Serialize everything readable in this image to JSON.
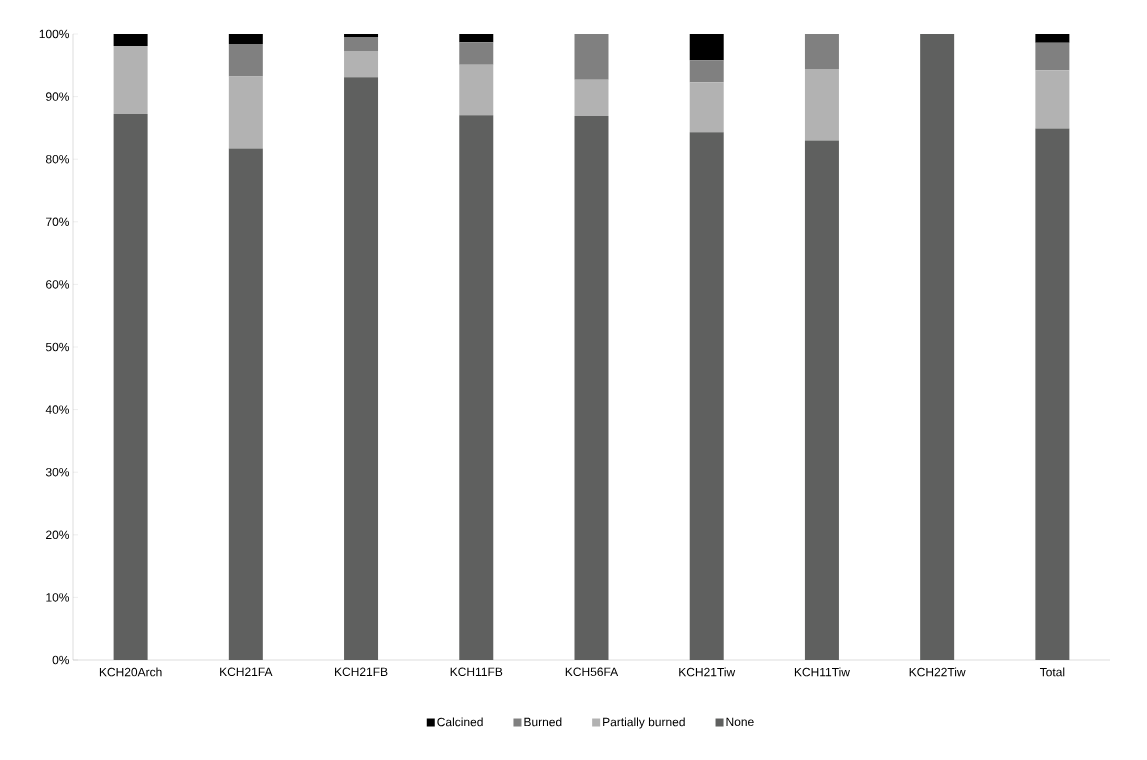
{
  "chart_data": {
    "type": "bar",
    "stacked": true,
    "categories": [
      "KCH20Arch",
      "KCH21FA",
      "KCH21FB",
      "KCH11FB",
      "KCH56FA",
      "KCH21Tiw",
      "KCH11Tiw",
      "KCH22Tiw",
      "Total"
    ],
    "series": [
      {
        "name": "None",
        "color": "#5f605f",
        "values": [
          87.2,
          81.7,
          93.1,
          87.0,
          86.9,
          84.3,
          83.0,
          100,
          84.9
        ]
      },
      {
        "name": "Partially burned",
        "color": "#b2b2b2",
        "values": [
          10.9,
          11.5,
          4.2,
          8.1,
          5.8,
          8.0,
          11.4,
          0,
          9.3
        ]
      },
      {
        "name": "Burned",
        "color": "#808080",
        "values": [
          0,
          5.2,
          2.2,
          3.6,
          7.3,
          3.5,
          5.6,
          0,
          4.4
        ]
      },
      {
        "name": "Calcined",
        "color": "#000000",
        "values": [
          1.9,
          1.6,
          0.5,
          1.3,
          0,
          4.2,
          0,
          0,
          1.4
        ]
      }
    ],
    "ylim": [
      0,
      100
    ],
    "yticks": [
      {
        "value": 0,
        "label": "0%"
      },
      {
        "value": 10,
        "label": "10%"
      },
      {
        "value": 20,
        "label": "20%"
      },
      {
        "value": 30,
        "label": "30%"
      },
      {
        "value": 40,
        "label": "40%"
      },
      {
        "value": 50,
        "label": "50%"
      },
      {
        "value": 60,
        "label": "60%"
      },
      {
        "value": 70,
        "label": "70%"
      },
      {
        "value": 80,
        "label": "80%"
      },
      {
        "value": 90,
        "label": "90%"
      },
      {
        "value": 100,
        "label": "100%"
      }
    ],
    "grid": false,
    "legend": "bottom"
  }
}
